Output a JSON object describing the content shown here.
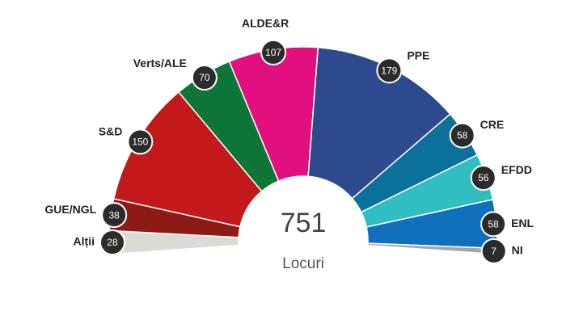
{
  "chart_data": {
    "type": "parliament",
    "categories": [
      "Alții",
      "GUE/NGL",
      "S&D",
      "Verts/ALE",
      "ALDE&R",
      "PPE",
      "CRE",
      "EFDD",
      "ENL",
      "NI"
    ],
    "values": [
      28,
      38,
      150,
      70,
      107,
      179,
      58,
      56,
      58,
      7
    ],
    "colors": [
      "#dcdad5",
      "#8e1a15",
      "#c3191a",
      "#0f7536",
      "#e20f80",
      "#2c4a8d",
      "#0b709b",
      "#30bec3",
      "#1070bb",
      "#a5a5a5"
    ],
    "total": 751,
    "center_label": "Locuri"
  }
}
